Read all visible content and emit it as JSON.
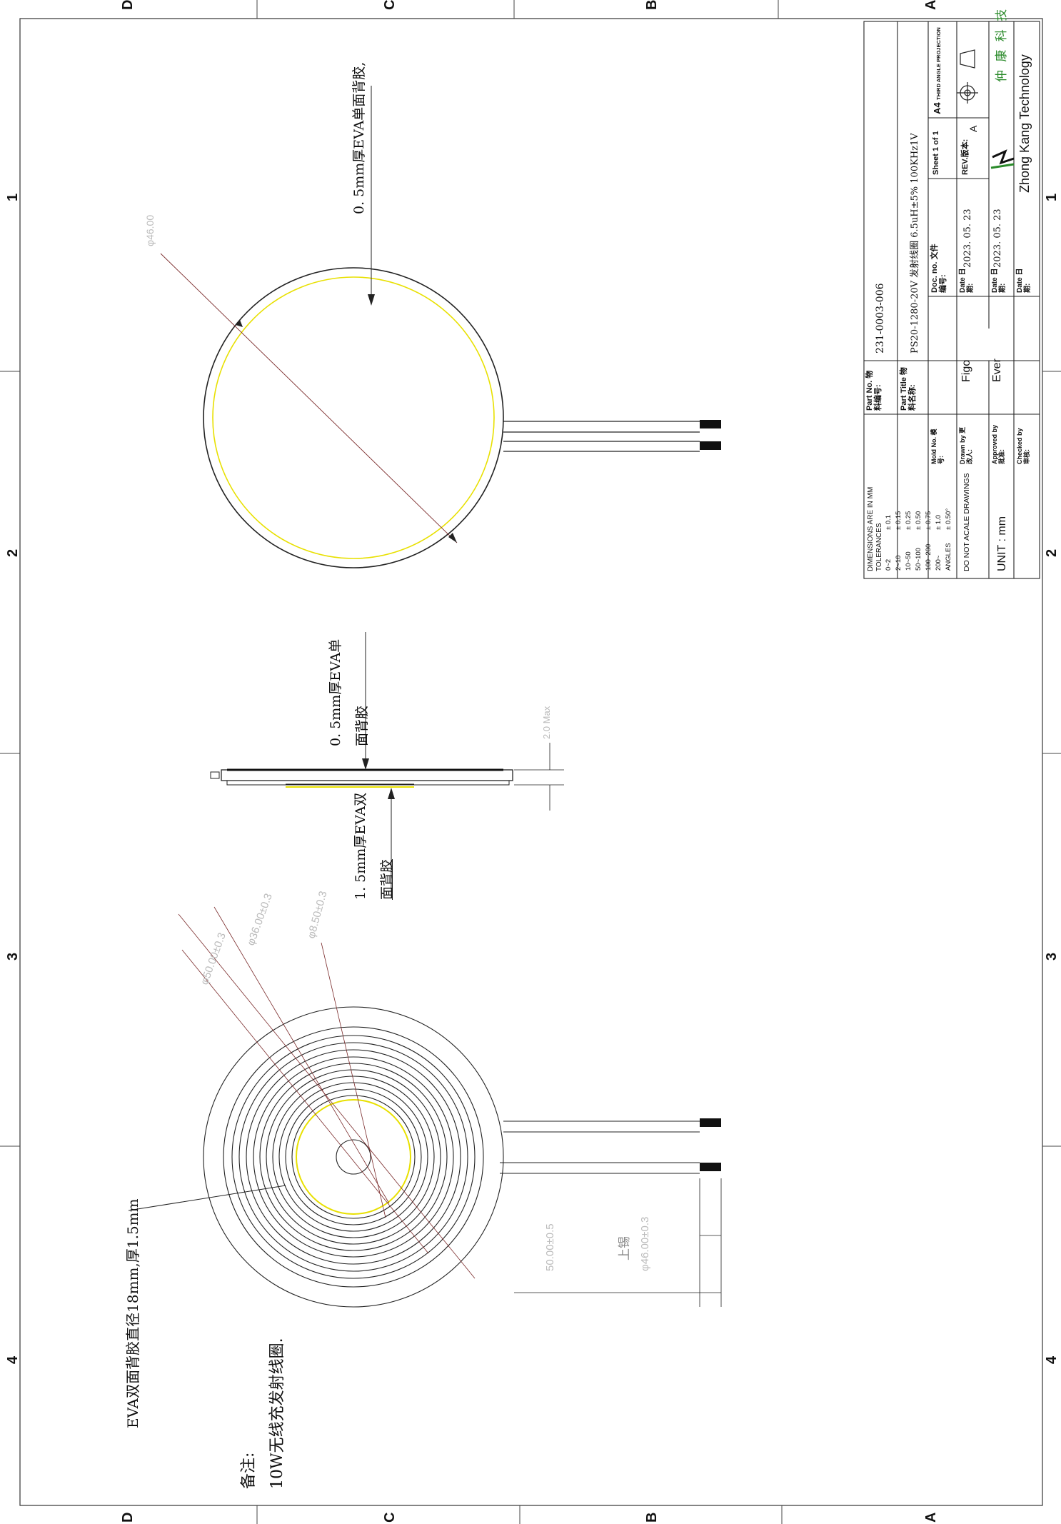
{
  "border_zones": {
    "letters": [
      "D",
      "C",
      "B",
      "A"
    ],
    "numbers": [
      "1",
      "2",
      "3",
      "4"
    ]
  },
  "title_block": {
    "tolerances": {
      "header": "DIMENSIONS ARE IN  MM",
      "subheader": "TOLERANCES",
      "rows": [
        {
          "range": "0~2",
          "tol": "± 0.1"
        },
        {
          "range": "2~10",
          "tol": "± 0.15"
        },
        {
          "range": "10~50",
          "tol": "± 0.25"
        },
        {
          "range": "50~100",
          "tol": "± 0.50"
        },
        {
          "range": "100~200",
          "tol": "± 0.75"
        },
        {
          "range": "200~",
          "tol": "± 1.0"
        },
        {
          "range": "ANGLES",
          "tol": "± 0.50°"
        }
      ],
      "note": "DO NOT ACALE DRAWINGS",
      "unit": "UNIT : mm"
    },
    "part_no_label": "Part No. 物料编号:",
    "part_no": "231-0003-006",
    "part_title_label": "Part Title 物料名称:",
    "part_title": "PS20-1280-20V 发射线圈 6.5uH±5% 100KHz1V",
    "mold_no_label": "Mold No. 模号:",
    "doc_no_label": "Doc. no. 文件编号:",
    "sheet": "Sheet 1 of 1",
    "size": "A4",
    "projection": "THIRD ANGLE PROJECTION",
    "drawn_by_label": "Drawn by 更改人:",
    "drawn_by": "Figo",
    "date_label": "Date 日期:",
    "drawn_date": "2023. 05. 23",
    "rev_label": "REV.版本:",
    "rev": "A",
    "approved_by_label": "Approved by 批准:",
    "approved_by": "Ever",
    "approved_date": "2023. 05. 23",
    "checked_by_label": "Checked by 审核:",
    "company_cn": "仲 康 科 技",
    "company_en": "Zhong Kang Technology"
  },
  "annotations": {
    "top_view_eva": "0. 5mm厚EVA单面背胶,",
    "side_view_eva_top_line1": "0. 5mm厚EVA单",
    "side_view_eva_top_line2": "面背胶",
    "side_view_eva_bottom_line1": "1. 5mm厚EVA双",
    "side_view_eva_bottom_line2": "面背胶",
    "coil_eva_note": "EVA双面背胶直径18mm,厚1.5mm",
    "lead_label": "上锡",
    "remark_label": "备注:",
    "remark_text": "10W无线充发射线圈."
  }
}
